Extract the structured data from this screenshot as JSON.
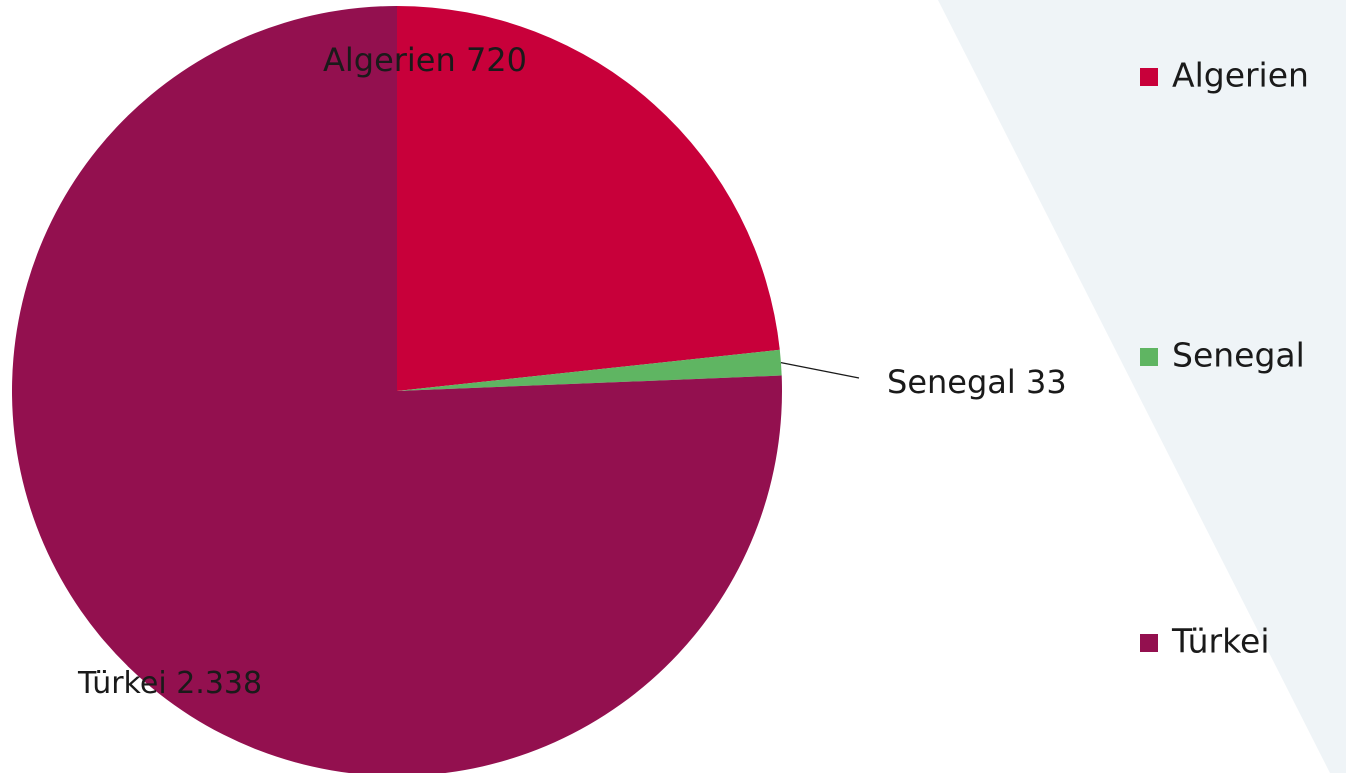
{
  "chart_data": {
    "type": "pie",
    "categories": [
      "Algerien",
      "Senegal",
      "Türkei"
    ],
    "values": [
      720,
      33,
      2338
    ],
    "value_labels": [
      "720",
      "33",
      "2.338"
    ],
    "colors": [
      "#c8003a",
      "#5fb562",
      "#93104f"
    ],
    "legend": "right"
  }
}
